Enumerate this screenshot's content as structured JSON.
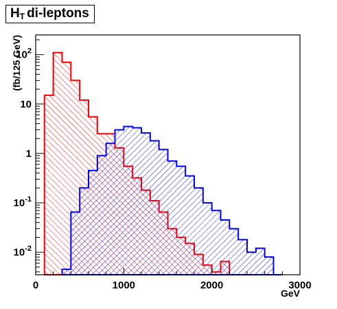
{
  "title": {
    "main": "H",
    "sub": "T",
    "rest": "di-leptons"
  },
  "chart_data": {
    "type": "histogram",
    "title": "H_T di-leptons",
    "xlabel": "GeV",
    "ylabel": "(fb/125 GeV)",
    "xlim": [
      0,
      3000
    ],
    "ylim": [
      0.0035,
      250
    ],
    "log_y": true,
    "grid": false,
    "bin_width": 100,
    "x_ticks": [
      {
        "value": 0,
        "label": "0"
      },
      {
        "value": 1000,
        "label": "1000"
      },
      {
        "value": 2000,
        "label": "2000"
      },
      {
        "value": 3000,
        "label": "3000"
      }
    ],
    "y_ticks": [
      {
        "value": 0.01,
        "base": "10",
        "exp": "-2"
      },
      {
        "value": 0.1,
        "base": "10",
        "exp": "-1"
      },
      {
        "value": 1,
        "base": "1",
        "exp": ""
      },
      {
        "value": 10,
        "base": "10",
        "exp": ""
      },
      {
        "value": 100,
        "base": "10",
        "exp": "2"
      }
    ],
    "series": [
      {
        "color": "#ff0000",
        "hatch": "forward",
        "bins": [
          [
            100,
            15
          ],
          [
            200,
            110
          ],
          [
            300,
            70
          ],
          [
            400,
            30
          ],
          [
            500,
            12
          ],
          [
            600,
            5.5
          ],
          [
            700,
            2.5
          ],
          [
            800,
            2.5
          ],
          [
            900,
            1.3
          ],
          [
            1000,
            0.55
          ],
          [
            1100,
            0.32
          ],
          [
            1200,
            0.18
          ],
          [
            1300,
            0.11
          ],
          [
            1400,
            0.065
          ],
          [
            1500,
            0.03
          ],
          [
            1600,
            0.02
          ],
          [
            1700,
            0.015
          ],
          [
            1800,
            0.009
          ],
          [
            1900,
            0.0055
          ],
          [
            2000,
            0.004
          ],
          [
            2100,
            0.0065
          ]
        ]
      },
      {
        "color": "#0000ff",
        "hatch": "backward",
        "bins": [
          [
            300,
            0.0045
          ],
          [
            400,
            0.065
          ],
          [
            500,
            0.2
          ],
          [
            600,
            0.45
          ],
          [
            700,
            0.9
          ],
          [
            800,
            1.6
          ],
          [
            900,
            3.0
          ],
          [
            1000,
            3.5
          ],
          [
            1100,
            3.3
          ],
          [
            1200,
            2.6
          ],
          [
            1300,
            1.8
          ],
          [
            1400,
            1.2
          ],
          [
            1500,
            0.7
          ],
          [
            1600,
            0.55
          ],
          [
            1700,
            0.35
          ],
          [
            1800,
            0.2
          ],
          [
            1900,
            0.1
          ],
          [
            2000,
            0.07
          ],
          [
            2100,
            0.045
          ],
          [
            2200,
            0.03
          ],
          [
            2300,
            0.018
          ],
          [
            2400,
            0.01
          ],
          [
            2500,
            0.012
          ],
          [
            2600,
            0.008
          ],
          [
            2700,
            0.0035
          ]
        ]
      }
    ]
  }
}
